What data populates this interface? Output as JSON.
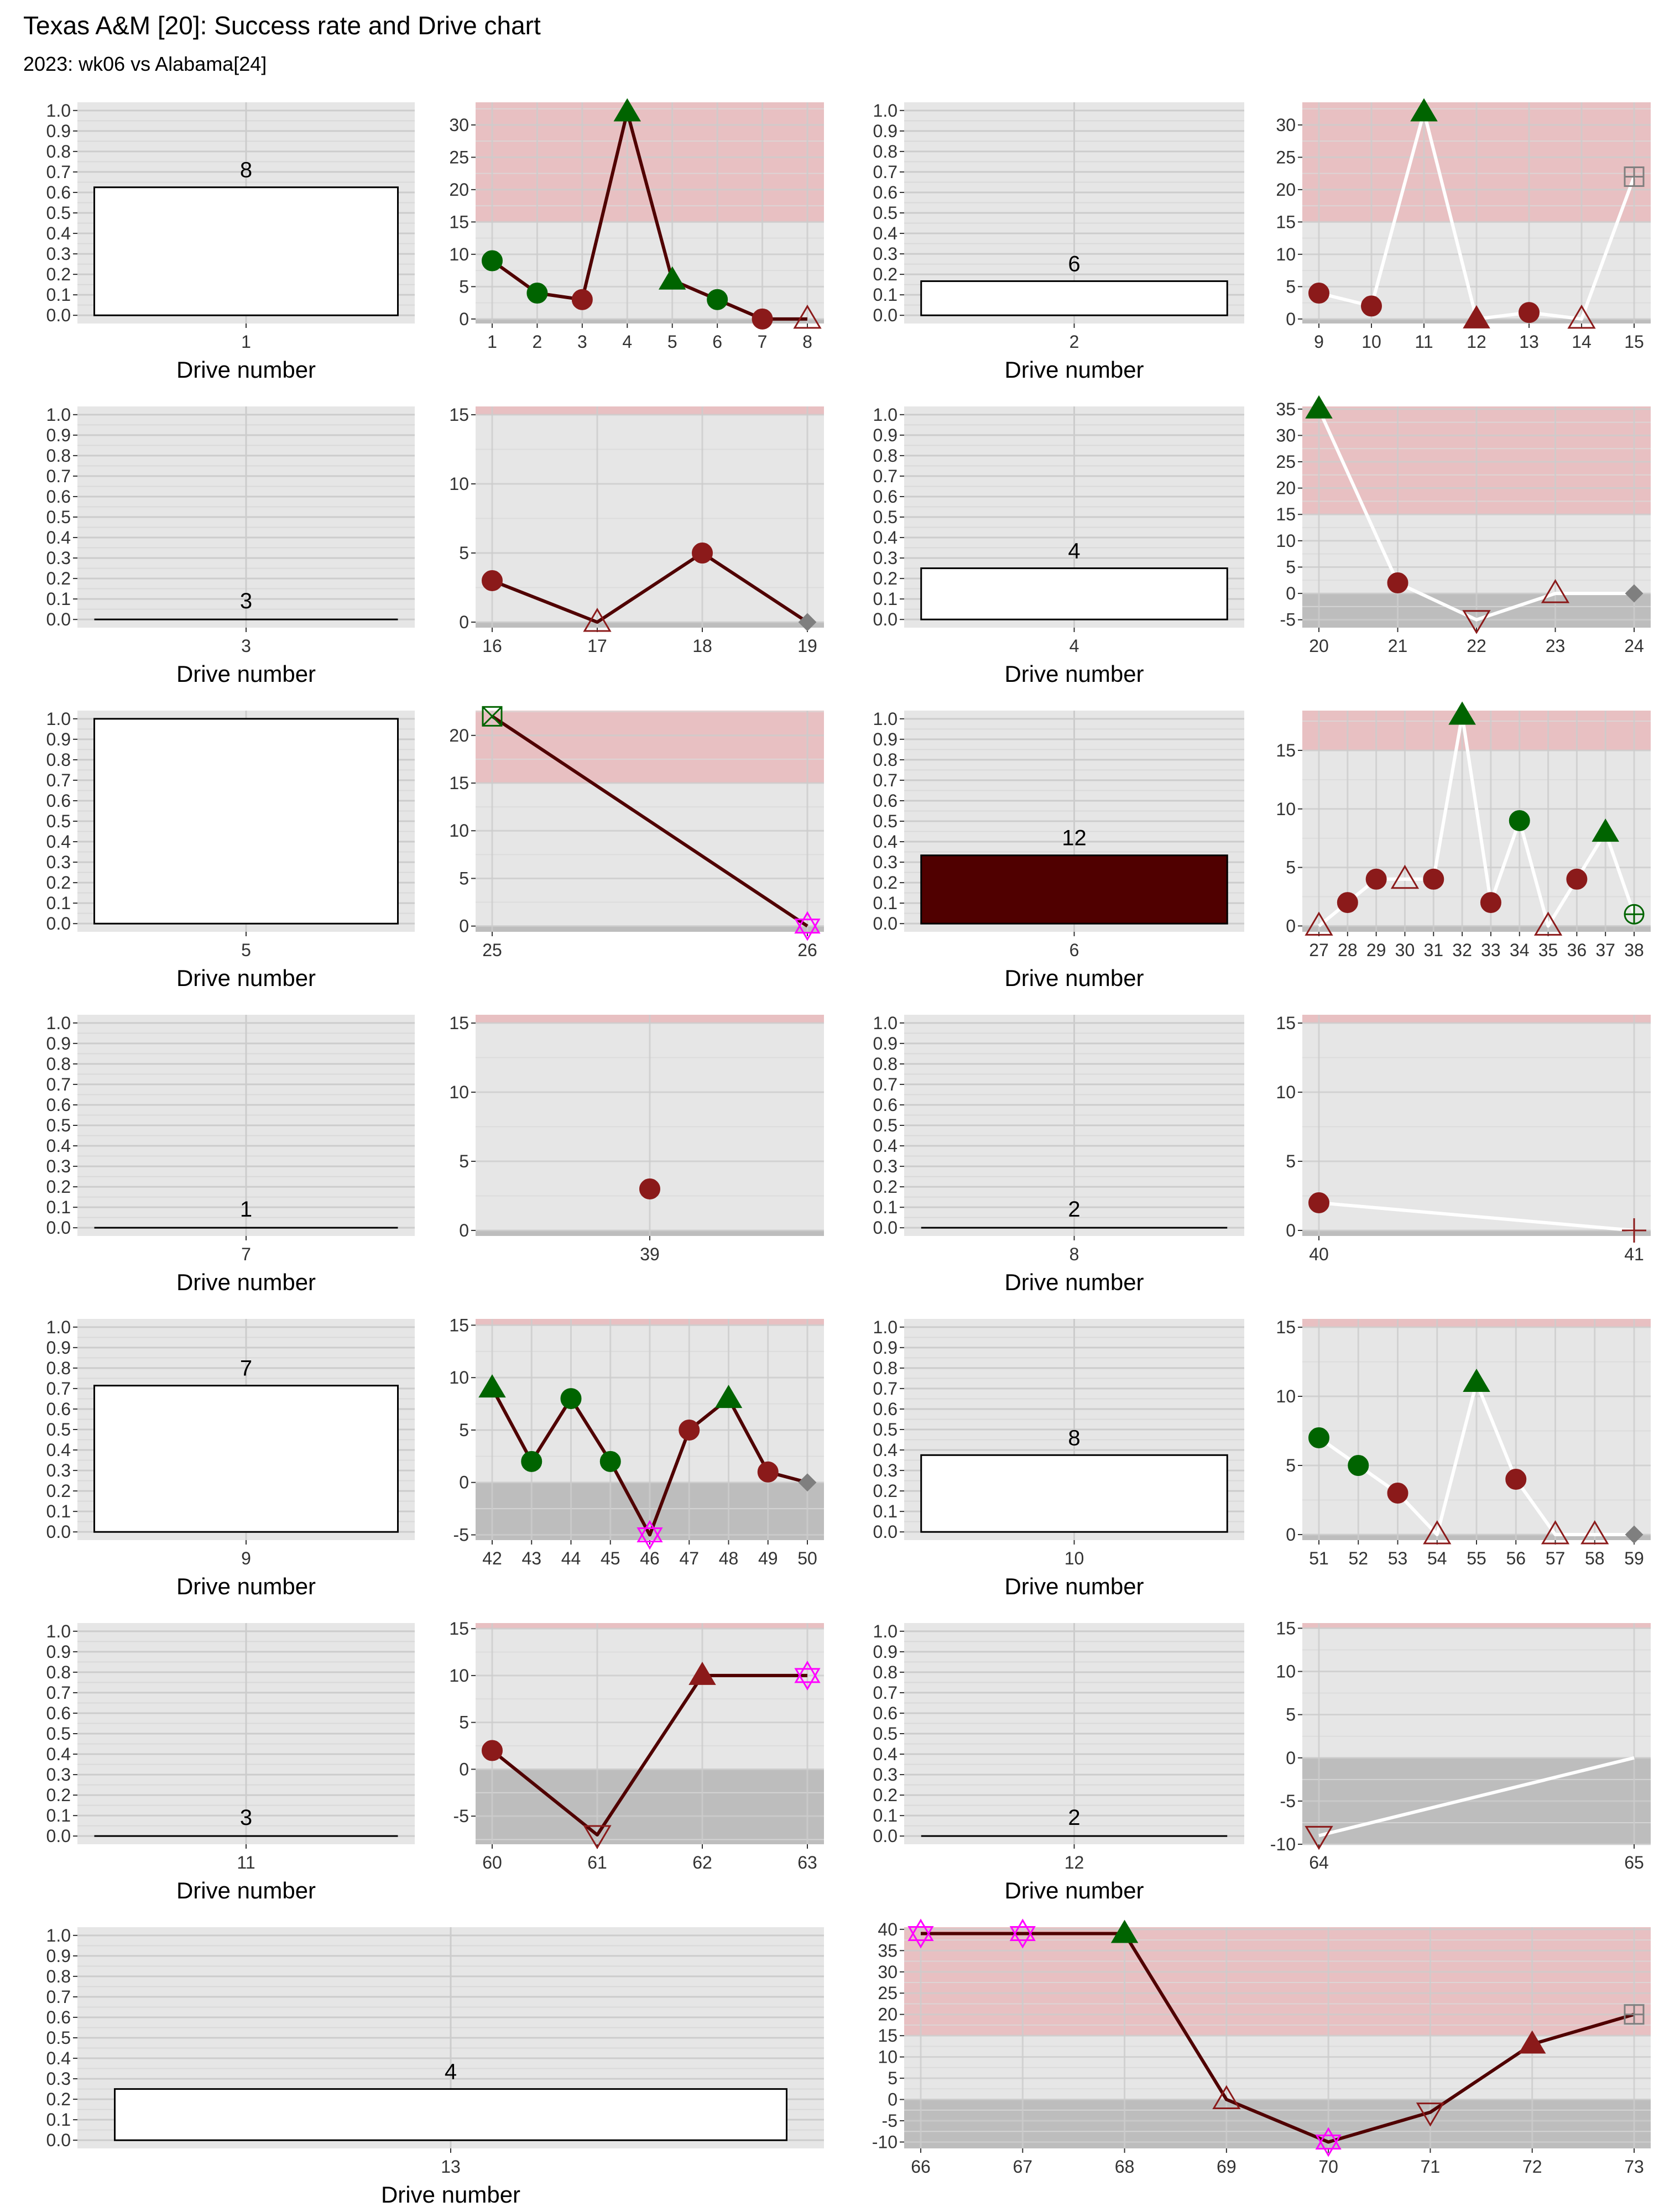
{
  "header": {
    "title": "Texas A&M [20]: Success rate and Drive chart",
    "subtitle": "2023: wk06 vs Alabama[24]"
  },
  "colors": {
    "panel_bg": "#e6e6e6",
    "grid_major": "#cccccc",
    "grid_minor": "#d9d9d9",
    "red_zone": "#e8c0c2",
    "loss_zone": "#bdbdbd",
    "maroon_line": "#500000",
    "white_line": "#ffffff",
    "success_green": "#006400",
    "fail_red": "#8b1a1a",
    "special_magenta": "#ff00ff",
    "neutral_gray": "#7f7f7f",
    "bar_white": "#ffffff",
    "bar_maroon": "#500000"
  },
  "chart_data": [
    {
      "type": "bar",
      "drive": 1,
      "plays_label": "8",
      "success_rate": 0.625,
      "fill": "white",
      "xlabel": "Drive number",
      "yticks": [
        "0.0",
        "0.1",
        "0.2",
        "0.3",
        "0.4",
        "0.5",
        "0.6",
        "0.7",
        "0.8",
        "0.9",
        "1.0"
      ]
    },
    {
      "type": "line",
      "line_color": "maroon",
      "ylim": [
        -0.7,
        33.5
      ],
      "yticks": [
        0,
        5,
        10,
        15,
        20,
        25,
        30
      ],
      "loss_floor": -0.7,
      "red_from": 15,
      "xticks": [
        1,
        2,
        3,
        4,
        5,
        6,
        7,
        8
      ],
      "points": [
        [
          1,
          9,
          "circle",
          "green"
        ],
        [
          2,
          4,
          "circle",
          "green"
        ],
        [
          3,
          3,
          "circle",
          "red"
        ],
        [
          4,
          32,
          "triangle",
          "green"
        ],
        [
          5,
          6,
          "triangle",
          "green"
        ],
        [
          6,
          3,
          "circle",
          "green"
        ],
        [
          7,
          0,
          "circle",
          "red"
        ],
        [
          8,
          0,
          "triangle-open",
          "red"
        ]
      ]
    },
    {
      "type": "bar",
      "drive": 2,
      "plays_label": "6",
      "success_rate": 0.1667,
      "fill": "white",
      "xlabel": "Drive number",
      "yticks": [
        "0.0",
        "0.1",
        "0.2",
        "0.3",
        "0.4",
        "0.5",
        "0.6",
        "0.7",
        "0.8",
        "0.9",
        "1.0"
      ]
    },
    {
      "type": "line",
      "line_color": "white",
      "ylim": [
        -0.7,
        33.5
      ],
      "yticks": [
        0,
        5,
        10,
        15,
        20,
        25,
        30
      ],
      "loss_floor": -0.7,
      "red_from": 15,
      "xticks": [
        9,
        10,
        11,
        12,
        13,
        14,
        15
      ],
      "points": [
        [
          9,
          4,
          "circle",
          "red"
        ],
        [
          10,
          2,
          "circle",
          "red"
        ],
        [
          11,
          32,
          "triangle",
          "green"
        ],
        [
          12,
          0,
          "triangle",
          "red"
        ],
        [
          13,
          1,
          "circle",
          "red"
        ],
        [
          14,
          0,
          "triangle-open",
          "red"
        ],
        [
          15,
          22,
          "square-plus",
          "gray"
        ]
      ]
    },
    {
      "type": "bar",
      "drive": 3,
      "plays_label": "3",
      "success_rate": 0,
      "fill": "white",
      "xlabel": "Drive number",
      "yticks": [
        "0.0",
        "0.1",
        "0.2",
        "0.3",
        "0.4",
        "0.5",
        "0.6",
        "0.7",
        "0.8",
        "0.9",
        "1.0"
      ]
    },
    {
      "type": "line",
      "line_color": "maroon",
      "ylim": [
        -0.4,
        15.6
      ],
      "yticks": [
        0,
        5,
        10,
        15
      ],
      "loss_floor": -0.4,
      "red_from": 15,
      "xticks": [
        16,
        17,
        18,
        19
      ],
      "points": [
        [
          16,
          3,
          "circle",
          "red"
        ],
        [
          17,
          0,
          "triangle-open",
          "red"
        ],
        [
          18,
          5,
          "circle",
          "red"
        ],
        [
          19,
          0,
          "diamond",
          "gray"
        ]
      ]
    },
    {
      "type": "bar",
      "drive": 4,
      "plays_label": "4",
      "success_rate": 0.25,
      "fill": "white",
      "xlabel": "Drive number",
      "yticks": [
        "0.0",
        "0.1",
        "0.2",
        "0.3",
        "0.4",
        "0.5",
        "0.6",
        "0.7",
        "0.8",
        "0.9",
        "1.0"
      ]
    },
    {
      "type": "line",
      "line_color": "white",
      "ylim": [
        -6.5,
        35.5
      ],
      "yticks": [
        -5,
        0,
        5,
        10,
        15,
        20,
        25,
        30,
        35
      ],
      "loss_floor": -6.5,
      "red_from": 15,
      "xticks": [
        20,
        21,
        22,
        23,
        24
      ],
      "points": [
        [
          20,
          35,
          "triangle",
          "green"
        ],
        [
          21,
          2,
          "circle",
          "red"
        ],
        [
          22,
          -5,
          "triangle-down-open",
          "red"
        ],
        [
          23,
          0,
          "triangle-open",
          "red"
        ],
        [
          24,
          0,
          "diamond",
          "gray"
        ]
      ]
    },
    {
      "type": "bar",
      "drive": 5,
      "plays_label": "",
      "success_rate": 1.0,
      "fill": "white",
      "xlabel": "Drive number",
      "yticks": [
        "0.0",
        "0.1",
        "0.2",
        "0.3",
        "0.4",
        "0.5",
        "0.6",
        "0.7",
        "0.8",
        "0.9",
        "1.0"
      ]
    },
    {
      "type": "line",
      "line_color": "maroon",
      "ylim": [
        -0.6,
        22.6
      ],
      "yticks": [
        0,
        5,
        10,
        15,
        20
      ],
      "loss_floor": -0.6,
      "red_from": 15,
      "xticks": [
        25,
        26
      ],
      "points": [
        [
          25,
          22,
          "square-x",
          "green"
        ],
        [
          26,
          0,
          "star-open",
          "magenta"
        ]
      ]
    },
    {
      "type": "bar",
      "drive": 6,
      "plays_label": "12",
      "success_rate": 0.3333,
      "fill": "maroon",
      "xlabel": "Drive number",
      "yticks": [
        "0.0",
        "0.1",
        "0.2",
        "0.3",
        "0.4",
        "0.5",
        "0.6",
        "0.7",
        "0.8",
        "0.9",
        "1.0"
      ]
    },
    {
      "type": "line",
      "line_color": "white",
      "ylim": [
        -0.5,
        18.4
      ],
      "yticks": [
        0,
        5,
        10,
        15
      ],
      "loss_floor": -0.5,
      "red_from": 15,
      "xticks": [
        27,
        28,
        29,
        30,
        31,
        32,
        33,
        34,
        35,
        36,
        37,
        38
      ],
      "points": [
        [
          27,
          0,
          "triangle-open",
          "red"
        ],
        [
          28,
          2,
          "circle",
          "red"
        ],
        [
          29,
          4,
          "circle",
          "red"
        ],
        [
          30,
          4,
          "triangle-open",
          "red"
        ],
        [
          31,
          4,
          "circle",
          "red"
        ],
        [
          32,
          18,
          "triangle",
          "green"
        ],
        [
          33,
          2,
          "circle",
          "red"
        ],
        [
          34,
          9,
          "circle",
          "green"
        ],
        [
          35,
          0,
          "triangle-open",
          "red"
        ],
        [
          36,
          4,
          "circle",
          "red"
        ],
        [
          37,
          8,
          "triangle",
          "green"
        ],
        [
          38,
          1,
          "circle-plus",
          "green"
        ]
      ]
    },
    {
      "type": "bar",
      "drive": 7,
      "plays_label": "1",
      "success_rate": 0,
      "fill": "white",
      "xlabel": "Drive number",
      "yticks": [
        "0.0",
        "0.1",
        "0.2",
        "0.3",
        "0.4",
        "0.5",
        "0.6",
        "0.7",
        "0.8",
        "0.9",
        "1.0"
      ]
    },
    {
      "type": "line",
      "line_color": "maroon",
      "ylim": [
        -0.4,
        15.6
      ],
      "yticks": [
        0,
        5,
        10,
        15
      ],
      "loss_floor": -0.4,
      "red_from": 15,
      "xticks": [
        39
      ],
      "points": [
        [
          39,
          3,
          "circle",
          "red"
        ]
      ]
    },
    {
      "type": "bar",
      "drive": 8,
      "plays_label": "2",
      "success_rate": 0,
      "fill": "white",
      "xlabel": "Drive number",
      "yticks": [
        "0.0",
        "0.1",
        "0.2",
        "0.3",
        "0.4",
        "0.5",
        "0.6",
        "0.7",
        "0.8",
        "0.9",
        "1.0"
      ]
    },
    {
      "type": "line",
      "line_color": "white",
      "ylim": [
        -0.4,
        15.6
      ],
      "yticks": [
        0,
        5,
        10,
        15
      ],
      "loss_floor": -0.4,
      "red_from": 15,
      "xticks": [
        40,
        41
      ],
      "points": [
        [
          40,
          2,
          "circle",
          "red"
        ],
        [
          41,
          0,
          "plus",
          "red"
        ]
      ]
    },
    {
      "type": "bar",
      "drive": 9,
      "plays_label": "7",
      "success_rate": 0.7143,
      "fill": "white",
      "xlabel": "Drive number",
      "yticks": [
        "0.0",
        "0.1",
        "0.2",
        "0.3",
        "0.4",
        "0.5",
        "0.6",
        "0.7",
        "0.8",
        "0.9",
        "1.0"
      ]
    },
    {
      "type": "line",
      "line_color": "maroon",
      "ylim": [
        -5.5,
        15.6
      ],
      "yticks": [
        -5,
        0,
        5,
        10,
        15
      ],
      "loss_floor": -5.5,
      "red_from": 15,
      "xticks": [
        42,
        43,
        44,
        45,
        46,
        47,
        48,
        49,
        50
      ],
      "points": [
        [
          42,
          9,
          "triangle",
          "green"
        ],
        [
          43,
          2,
          "circle",
          "green"
        ],
        [
          44,
          8,
          "circle",
          "green"
        ],
        [
          45,
          2,
          "circle",
          "green"
        ],
        [
          46,
          -5,
          "star-open",
          "magenta"
        ],
        [
          47,
          5,
          "circle",
          "red"
        ],
        [
          48,
          8,
          "triangle",
          "green"
        ],
        [
          49,
          1,
          "circle",
          "red"
        ],
        [
          50,
          0,
          "diamond",
          "gray"
        ]
      ]
    },
    {
      "type": "bar",
      "drive": 10,
      "plays_label": "8",
      "success_rate": 0.375,
      "fill": "white",
      "xlabel": "Drive number",
      "yticks": [
        "0.0",
        "0.1",
        "0.2",
        "0.3",
        "0.4",
        "0.5",
        "0.6",
        "0.7",
        "0.8",
        "0.9",
        "1.0"
      ]
    },
    {
      "type": "line",
      "line_color": "white",
      "ylim": [
        -0.4,
        15.6
      ],
      "yticks": [
        0,
        5,
        10,
        15
      ],
      "loss_floor": -0.4,
      "red_from": 15,
      "xticks": [
        51,
        52,
        53,
        54,
        55,
        56,
        57,
        58,
        59
      ],
      "points": [
        [
          51,
          7,
          "circle",
          "green"
        ],
        [
          52,
          5,
          "circle",
          "green"
        ],
        [
          53,
          3,
          "circle",
          "red"
        ],
        [
          54,
          0,
          "triangle-open",
          "red"
        ],
        [
          55,
          11,
          "triangle",
          "green"
        ],
        [
          56,
          4,
          "circle",
          "red"
        ],
        [
          57,
          0,
          "triangle-open",
          "red"
        ],
        [
          58,
          0,
          "triangle-open",
          "red"
        ],
        [
          59,
          0,
          "diamond",
          "gray"
        ]
      ]
    },
    {
      "type": "bar",
      "drive": 11,
      "plays_label": "3",
      "success_rate": 0,
      "fill": "white",
      "xlabel": "Drive number",
      "yticks": [
        "0.0",
        "0.1",
        "0.2",
        "0.3",
        "0.4",
        "0.5",
        "0.6",
        "0.7",
        "0.8",
        "0.9",
        "1.0"
      ]
    },
    {
      "type": "line",
      "line_color": "maroon",
      "ylim": [
        -8,
        15.6
      ],
      "yticks": [
        -5,
        0,
        5,
        10,
        15
      ],
      "loss_floor": -8,
      "red_from": 15,
      "xticks": [
        60,
        61,
        62,
        63
      ],
      "points": [
        [
          60,
          2,
          "circle",
          "red"
        ],
        [
          61,
          -7,
          "triangle-down-open",
          "red"
        ],
        [
          62,
          10,
          "triangle",
          "red"
        ],
        [
          63,
          10,
          "star-open",
          "magenta"
        ]
      ]
    },
    {
      "type": "bar",
      "drive": 12,
      "plays_label": "2",
      "success_rate": 0,
      "fill": "white",
      "xlabel": "Drive number",
      "yticks": [
        "0.0",
        "0.1",
        "0.2",
        "0.3",
        "0.4",
        "0.5",
        "0.6",
        "0.7",
        "0.8",
        "0.9",
        "1.0"
      ]
    },
    {
      "type": "line",
      "line_color": "white",
      "ylim": [
        -10,
        15.6
      ],
      "yticks": [
        -10,
        -5,
        0,
        5,
        10,
        15
      ],
      "loss_floor": -10,
      "red_from": 15,
      "xticks": [
        64,
        65
      ],
      "points": [
        [
          64,
          -9,
          "triangle-down-open",
          "red"
        ],
        [
          65,
          0,
          "none",
          "gray"
        ]
      ]
    },
    {
      "type": "bar",
      "drive": 13,
      "plays_label": "4",
      "success_rate": 0.25,
      "fill": "white",
      "xlabel": "Drive number",
      "yticks": [
        "0.0",
        "0.1",
        "0.2",
        "0.3",
        "0.4",
        "0.5",
        "0.6",
        "0.7",
        "0.8",
        "0.9",
        "1.0"
      ]
    },
    {
      "type": "line",
      "line_color": "maroon",
      "ylim": [
        -11.5,
        40.5
      ],
      "yticks": [
        -10,
        -5,
        0,
        5,
        10,
        15,
        20,
        25,
        30,
        35,
        40
      ],
      "loss_floor": -11.5,
      "red_from": 15,
      "xticks": [
        66,
        67,
        68,
        69,
        70,
        71,
        72,
        73
      ],
      "points": [
        [
          66,
          39,
          "star-open",
          "magenta"
        ],
        [
          67,
          39,
          "star-open",
          "magenta"
        ],
        [
          68,
          39,
          "triangle",
          "green"
        ],
        [
          69,
          0,
          "triangle-open",
          "red"
        ],
        [
          70,
          -10,
          "star-open",
          "magenta"
        ],
        [
          71,
          -3,
          "triangle-down-open",
          "red"
        ],
        [
          72,
          13,
          "triangle",
          "red"
        ],
        [
          73,
          20,
          "square-plus",
          "gray"
        ]
      ]
    }
  ]
}
